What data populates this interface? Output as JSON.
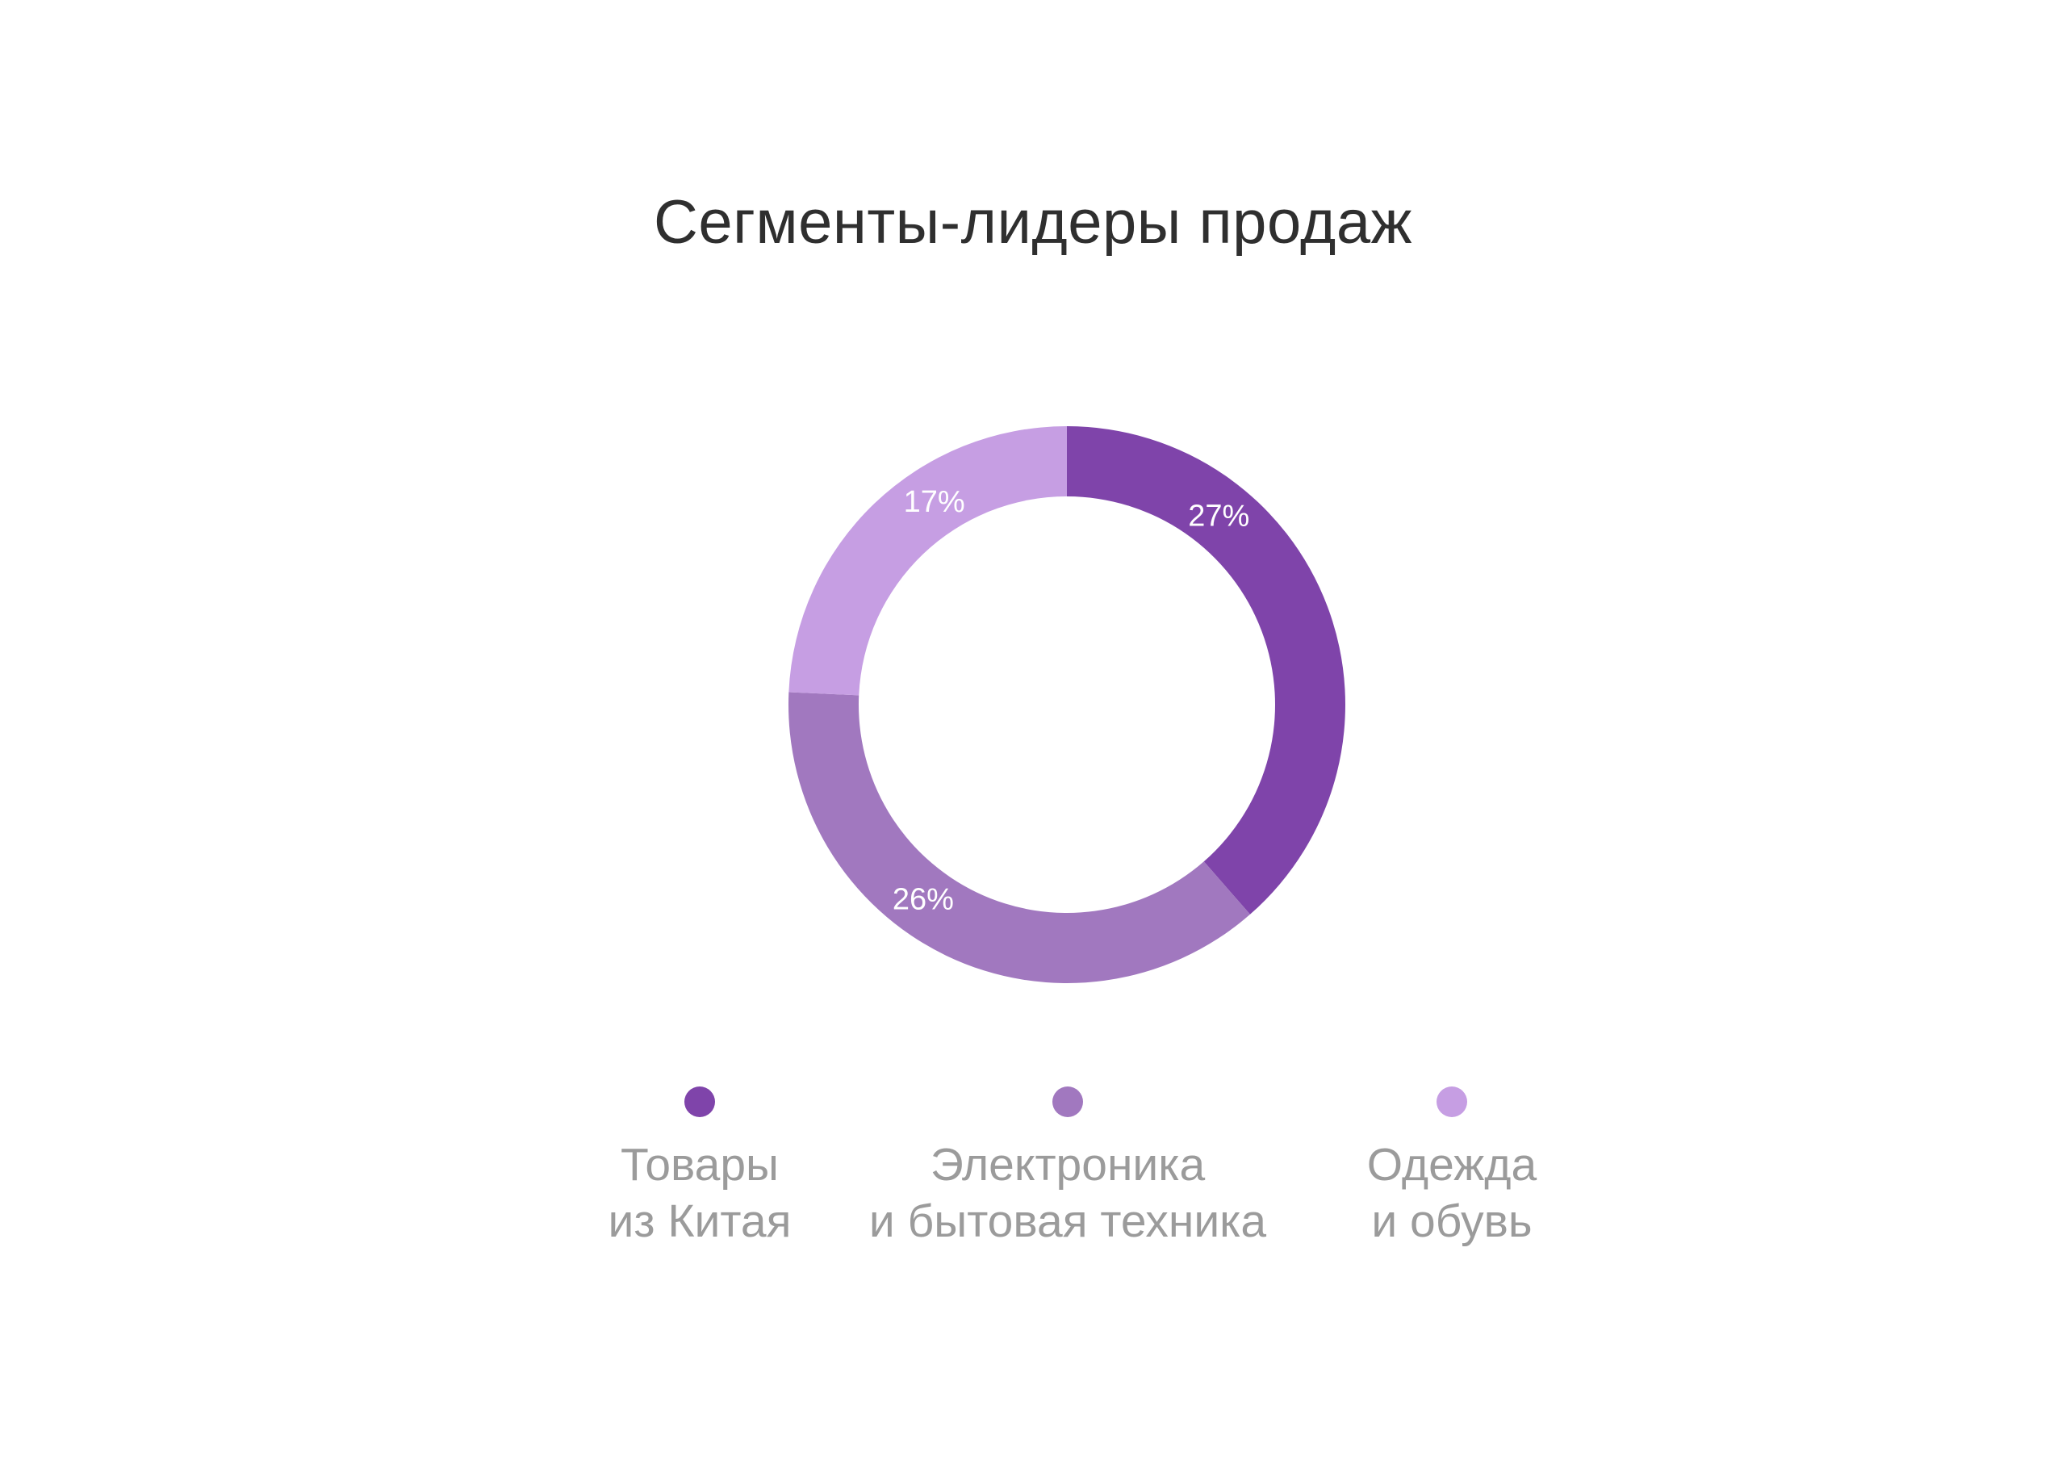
{
  "chart_data": {
    "type": "pie",
    "style": "donut",
    "title": "Сегменты-лидеры продаж",
    "categories": [
      "Товары из Китая",
      "Электроника и бытовая техника",
      "Одежда и обувь"
    ],
    "values": [
      27,
      26,
      17
    ],
    "value_labels": [
      "27%",
      "26%",
      "17%"
    ],
    "colors": [
      "#7f44aa",
      "#a178bf",
      "#c69ee3"
    ],
    "legend_position": "bottom",
    "legend": [
      {
        "line1": "Товары",
        "line2": "из Китая",
        "color": "#7f44aa"
      },
      {
        "line1": "Электроника",
        "line2": "и бытовая техника",
        "color": "#a178bf"
      },
      {
        "line1": "Одежда",
        "line2": "и обувь",
        "color": "#c69ee3"
      }
    ]
  }
}
